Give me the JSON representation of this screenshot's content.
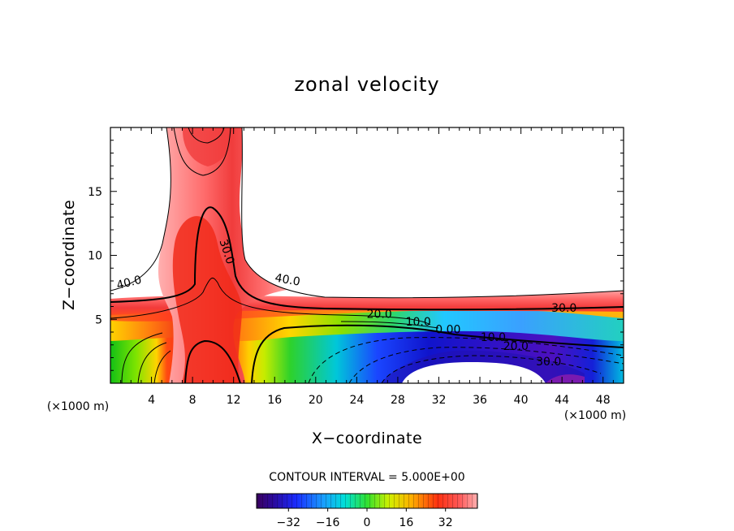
{
  "chart_data": {
    "type": "contour",
    "title": "zonal velocity",
    "xlabel": "X−coordinate",
    "ylabel": "Z−coordinate",
    "x_unit": "(×1000 m)",
    "xlim": [
      0,
      50
    ],
    "ylim": [
      0,
      20
    ],
    "x_ticks": [
      "4",
      "8",
      "12",
      "16",
      "20",
      "24",
      "28",
      "32",
      "36",
      "40",
      "44",
      "48"
    ],
    "x_tick_values": [
      4,
      8,
      12,
      16,
      20,
      24,
      28,
      32,
      36,
      40,
      44,
      48
    ],
    "y_ticks": [
      "5",
      "10",
      "15"
    ],
    "y_tick_values": [
      5,
      10,
      15
    ],
    "contour_labels": [
      {
        "text": "40.0",
        "x": 1.9,
        "y": 7.6,
        "rotate": -14
      },
      {
        "text": "30.0",
        "x": 11.0,
        "y": 10.2,
        "rotate": 72
      },
      {
        "text": "40.0",
        "x": 17.2,
        "y": 7.8,
        "rotate": 10
      },
      {
        "text": "30.0",
        "x": 44.2,
        "y": 5.6,
        "rotate": 0
      },
      {
        "text": "20.0",
        "x": 26.2,
        "y": 5.1,
        "rotate": 0
      },
      {
        "text": "10.0",
        "x": 30.0,
        "y": 4.5,
        "rotate": 0
      },
      {
        "text": "0.00",
        "x": 32.9,
        "y": 3.9,
        "rotate": 0
      },
      {
        "text": "10.0",
        "x": 37.3,
        "y": 3.3,
        "rotate": 0
      },
      {
        "text": "20.0",
        "x": 39.5,
        "y": 2.6,
        "rotate": 0
      },
      {
        "text": "30.0",
        "x": 42.7,
        "y": 1.4,
        "rotate": 0
      }
    ],
    "contour_interval_label": "CONTOUR INTERVAL = 5.000E+00",
    "colorbar": {
      "range": [
        -45,
        45
      ],
      "tick_labels": [
        "−32",
        "−16",
        "0",
        "16",
        "32"
      ],
      "tick_values": [
        -32,
        -16,
        0,
        16,
        32
      ]
    }
  }
}
